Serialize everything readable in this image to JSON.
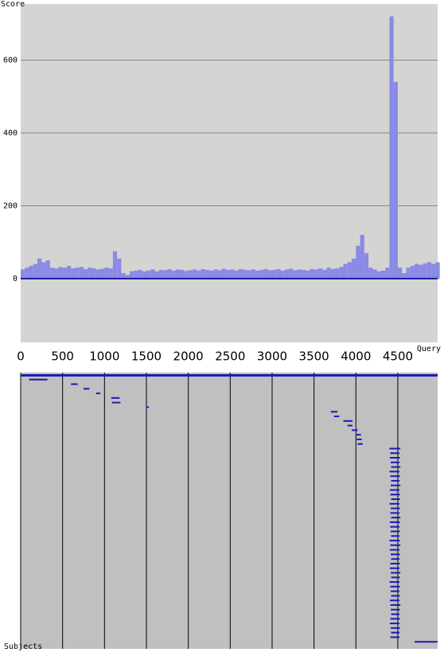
{
  "chart_data": [
    {
      "type": "bar",
      "y_label": "Score",
      "x_label": "Query",
      "color": "#8a8ae6",
      "axis_color": "#1c1c9c",
      "grid": true,
      "xlim": [
        0,
        4975
      ],
      "ylim": [
        -175,
        754
      ],
      "yticks": [
        0,
        200,
        400,
        600
      ],
      "x": [
        0,
        50,
        100,
        150,
        200,
        250,
        300,
        350,
        400,
        450,
        500,
        550,
        600,
        650,
        700,
        750,
        800,
        850,
        900,
        950,
        1000,
        1050,
        1100,
        1150,
        1200,
        1250,
        1300,
        1350,
        1400,
        1450,
        1500,
        1550,
        1600,
        1650,
        1700,
        1750,
        1800,
        1850,
        1900,
        1950,
        2000,
        2050,
        2100,
        2150,
        2200,
        2250,
        2300,
        2350,
        2400,
        2450,
        2500,
        2550,
        2600,
        2650,
        2700,
        2750,
        2800,
        2850,
        2900,
        2950,
        3000,
        3050,
        3100,
        3150,
        3200,
        3250,
        3300,
        3350,
        3400,
        3450,
        3500,
        3550,
        3600,
        3650,
        3700,
        3750,
        3800,
        3850,
        3900,
        3950,
        4000,
        4050,
        4100,
        4150,
        4200,
        4250,
        4300,
        4350,
        4400,
        4450,
        4500,
        4550,
        4600,
        4650,
        4700,
        4750,
        4800,
        4850,
        4900,
        4950
      ],
      "values": [
        25,
        30,
        35,
        40,
        55,
        45,
        50,
        30,
        28,
        32,
        30,
        35,
        28,
        30,
        32,
        26,
        30,
        28,
        25,
        27,
        30,
        28,
        75,
        55,
        15,
        10,
        20,
        22,
        24,
        20,
        22,
        25,
        20,
        24,
        23,
        26,
        22,
        25,
        24,
        21,
        23,
        25,
        22,
        26,
        24,
        22,
        25,
        23,
        27,
        24,
        25,
        22,
        26,
        24,
        23,
        25,
        22,
        24,
        26,
        23,
        24,
        26,
        22,
        25,
        27,
        23,
        25,
        24,
        22,
        26,
        25,
        28,
        24,
        30,
        26,
        28,
        32,
        40,
        45,
        55,
        90,
        120,
        70,
        30,
        25,
        20,
        22,
        30,
        720,
        540,
        30,
        15,
        30,
        35,
        40,
        38,
        42,
        45,
        40,
        45
      ]
    },
    {
      "type": "hits",
      "y_label": "Subjects",
      "color": "#1c1cb4",
      "grid": true,
      "xlim": [
        0,
        4975
      ],
      "xticks": [
        0,
        500,
        1000,
        1500,
        2000,
        2500,
        3000,
        3500,
        4000,
        4500
      ],
      "hits": [
        [
          0,
          4975
        ],
        [
          100,
          320
        ],
        [
          600,
          680
        ],
        [
          750,
          820
        ],
        [
          900,
          950
        ],
        [
          1080,
          1180
        ],
        [
          1090,
          1190
        ],
        [
          1500,
          1530
        ],
        [
          3700,
          3780
        ],
        [
          3740,
          3800
        ],
        [
          3850,
          3960
        ],
        [
          3900,
          3960
        ],
        [
          3950,
          4020
        ],
        [
          4000,
          4060
        ],
        [
          4010,
          4070
        ],
        [
          4020,
          4080
        ],
        [
          4400,
          4530
        ],
        [
          4410,
          4520
        ],
        [
          4405,
          4525
        ],
        [
          4415,
          4520
        ],
        [
          4420,
          4530
        ],
        [
          4400,
          4520
        ],
        [
          4410,
          4525
        ],
        [
          4420,
          4520
        ],
        [
          4415,
          4530
        ],
        [
          4405,
          4520
        ],
        [
          4410,
          4525
        ],
        [
          4420,
          4525
        ],
        [
          4400,
          4520
        ],
        [
          4415,
          4525
        ],
        [
          4410,
          4520
        ],
        [
          4420,
          4530
        ],
        [
          4405,
          4525
        ],
        [
          4410,
          4520
        ],
        [
          4415,
          4525
        ],
        [
          4420,
          4520
        ],
        [
          4400,
          4525
        ],
        [
          4410,
          4530
        ],
        [
          4405,
          4520
        ],
        [
          4415,
          4525
        ],
        [
          4420,
          4520
        ],
        [
          4410,
          4525
        ],
        [
          4405,
          4520
        ],
        [
          4415,
          4530
        ],
        [
          4420,
          4525
        ],
        [
          4400,
          4520
        ],
        [
          4410,
          4525
        ],
        [
          4415,
          4520
        ],
        [
          4420,
          4525
        ],
        [
          4405,
          4520
        ],
        [
          4410,
          4530
        ],
        [
          4415,
          4525
        ],
        [
          4420,
          4520
        ],
        [
          4410,
          4525
        ],
        [
          4405,
          4520
        ],
        [
          4415,
          4525
        ],
        [
          4420,
          4520
        ],
        [
          4410,
          4520
        ],
        [
          4700,
          4975
        ]
      ]
    }
  ]
}
